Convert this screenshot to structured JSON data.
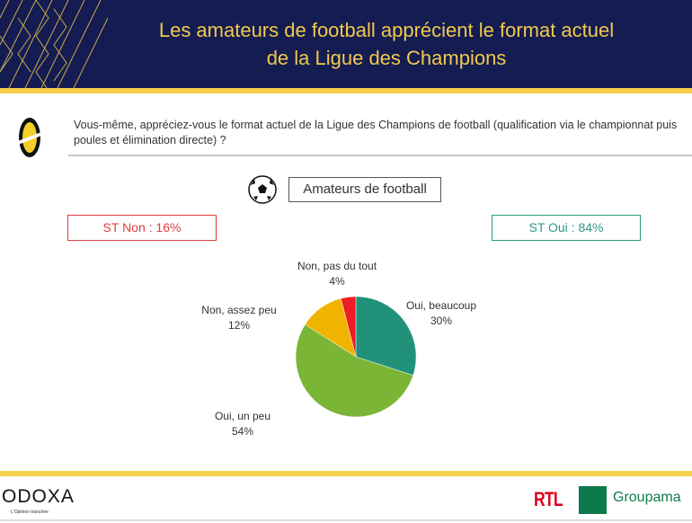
{
  "header": {
    "title_line1": "Les amateurs de football apprécient le format actuel",
    "title_line2": "de la Ligue des Champions"
  },
  "question": "Vous-même, appréciez-vous le format actuel de la Ligue des Champions de football (qualification via le championnat puis poules et élimination directe) ?",
  "segment_label": "Amateurs de football",
  "st_non": "ST Non : 16%",
  "st_oui": "ST Oui : 84%",
  "chart_data": {
    "type": "pie",
    "title": "",
    "slices": [
      {
        "label": "Oui, beaucoup",
        "value": 30,
        "display": "30%",
        "color": "#22917a"
      },
      {
        "label": "Oui, un peu",
        "value": 54,
        "display": "54%",
        "color": "#7ab535"
      },
      {
        "label": "Non, assez peu",
        "value": 12,
        "display": "12%",
        "color": "#f0b400"
      },
      {
        "label": "Non, pas du tout",
        "value": 4,
        "display": "4%",
        "color": "#ee1c25"
      }
    ],
    "start": "12 o'clock, clockwise"
  },
  "footer": {
    "brand": "ODOXA",
    "tagline": "L'Opinion tranchée",
    "partner1": "RTL",
    "partner2": "Groupama"
  }
}
